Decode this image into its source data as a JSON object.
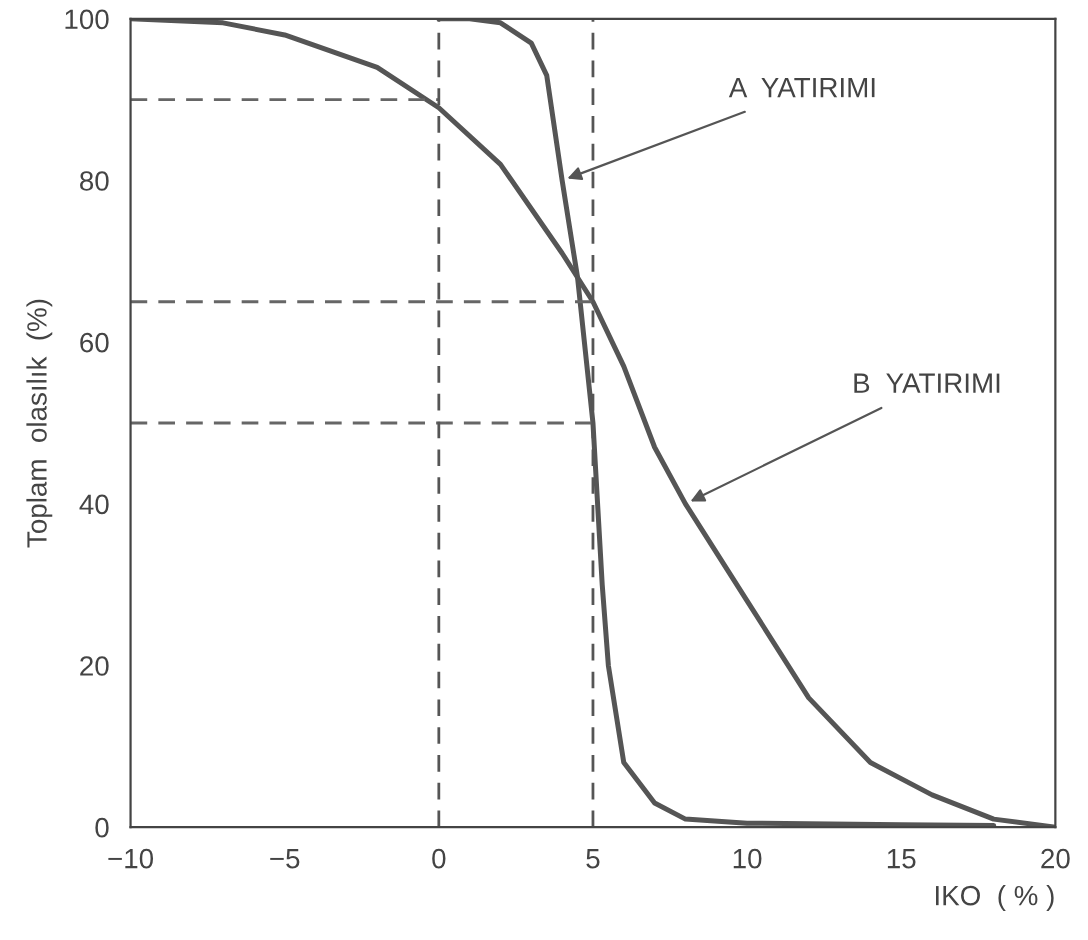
{
  "chart_data": {
    "type": "line",
    "xlabel": "IKO  ( % )",
    "ylabel": "Toplam  olasılık  (%)",
    "xlim": [
      -10,
      20
    ],
    "ylim": [
      0,
      100
    ],
    "xticks": [
      {
        "value": -10,
        "label": "−10"
      },
      {
        "value": -5,
        "label": "−5"
      },
      0,
      5,
      10,
      15,
      20
    ],
    "yticks": [
      0,
      20,
      40,
      60,
      80,
      100
    ],
    "grid": false,
    "legend": false,
    "marker": "none",
    "line_style": "solid",
    "series": [
      {
        "color": "#555555",
        "x": [
          0,
          1,
          2,
          3,
          3.5,
          4,
          4.5,
          5,
          5.3,
          5.5,
          6,
          7,
          8,
          10,
          15,
          18
        ],
        "values": [
          100,
          100,
          99.5,
          97,
          93,
          80,
          68,
          50,
          30,
          20,
          8,
          3,
          1,
          0.5,
          0.3,
          0.2
        ]
      },
      {
        "color": "#555555",
        "x": [
          -10,
          -7,
          -5,
          -2,
          0,
          2,
          4,
          4.5,
          5,
          6,
          7,
          8,
          10,
          12,
          14,
          16,
          18,
          20
        ],
        "values": [
          100,
          99.5,
          98,
          94,
          89,
          82,
          71,
          68,
          65,
          57,
          47,
          40,
          28,
          16,
          8,
          4,
          1,
          0
        ]
      },
      {
        "color": "#666666",
        "line_style": "dashed",
        "x": [
          -10,
          0
        ],
        "values": [
          90,
          90
        ]
      },
      {
        "color": "#666666",
        "line_style": "dashed",
        "x": [
          -10,
          5
        ],
        "values": [
          65,
          65
        ]
      },
      {
        "color": "#666666",
        "line_style": "dashed",
        "x": [
          -10,
          5
        ],
        "values": [
          50,
          50
        ]
      }
    ],
    "ref_lines": [
      {
        "axis": "x",
        "value": 0,
        "color": "#555555",
        "line_style": "dashed"
      },
      {
        "axis": "x",
        "value": 5,
        "color": "#555555",
        "line_style": "dashed"
      }
    ],
    "annotations": [
      {
        "text": "A  YATIRIMI",
        "x": 4,
        "y": 80
      },
      {
        "text": "B  YATIRIMI",
        "x": 8,
        "y": 40
      }
    ]
  }
}
